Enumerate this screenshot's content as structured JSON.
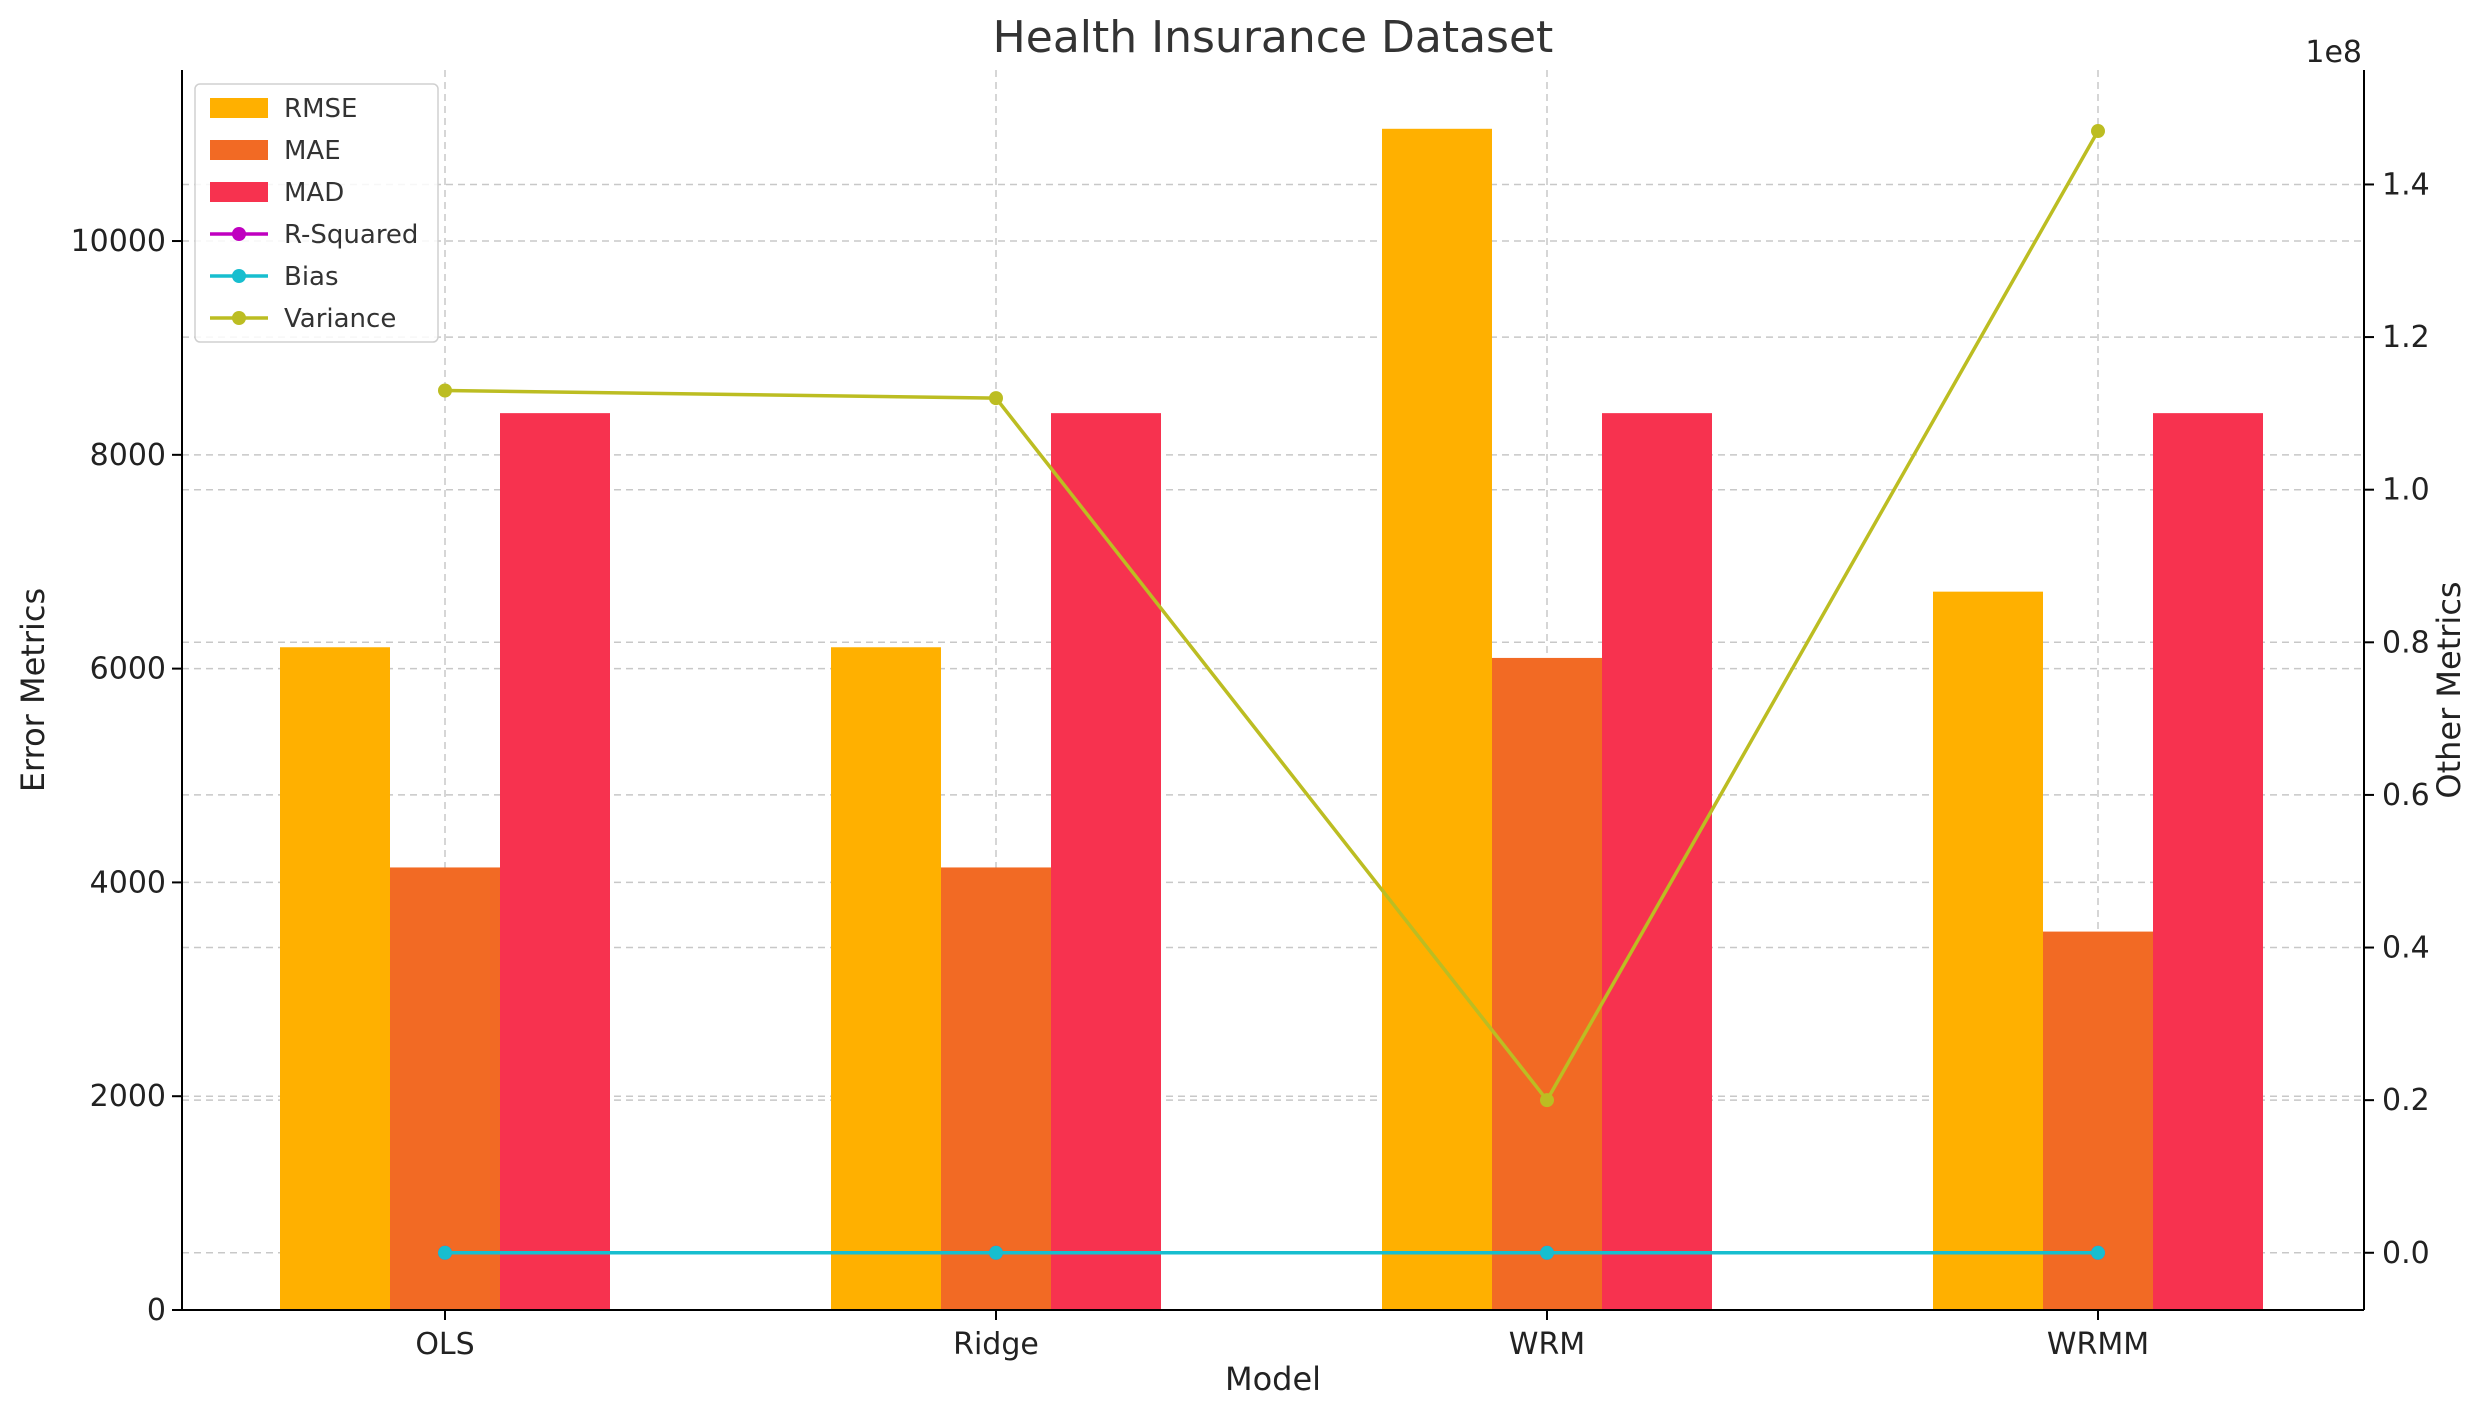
{
  "chart_data": {
    "type": "bar",
    "title": "Health Insurance Dataset",
    "xlabel": "Model",
    "ylabel": "Error Metrics",
    "y2label": "Other Metrics",
    "y2_offset_label": "1e8",
    "categories": [
      "OLS",
      "Ridge",
      "WRM",
      "WRMM"
    ],
    "ylim": [
      0,
      11600
    ],
    "y2lim": [
      -0.075,
      1.55
    ],
    "yticks": [
      0,
      2000,
      4000,
      6000,
      8000,
      10000
    ],
    "y2ticks": [
      0.0,
      0.2,
      0.4,
      0.6,
      0.8,
      1.0,
      1.2,
      1.4
    ],
    "y2tick_labels": [
      "0.0",
      "0.2",
      "0.4",
      "0.6",
      "0.8",
      "1.0",
      "1.2",
      "1.4"
    ],
    "grid": true,
    "legend_position": "top-left",
    "bar_series": [
      {
        "name": "RMSE",
        "color": "#FFB000",
        "values": [
          6200,
          6200,
          11050,
          6720
        ]
      },
      {
        "name": "MAE",
        "color": "#F26A24",
        "values": [
          4140,
          4140,
          6100,
          3540
        ]
      },
      {
        "name": "MAD",
        "color": "#F7324F",
        "values": [
          8390,
          8390,
          8390,
          8390
        ]
      }
    ],
    "line_series": [
      {
        "name": "R-Squared",
        "color": "#C000C0",
        "axis": "right",
        "values": [
          0.0,
          0.0,
          0.0,
          0.0
        ]
      },
      {
        "name": "Bias",
        "color": "#17BECF",
        "axis": "right",
        "values": [
          0.0,
          0.0,
          0.0,
          0.0
        ]
      },
      {
        "name": "Variance",
        "color": "#BCBD22",
        "axis": "right",
        "values": [
          1.13,
          1.12,
          0.2,
          1.47
        ]
      }
    ]
  }
}
